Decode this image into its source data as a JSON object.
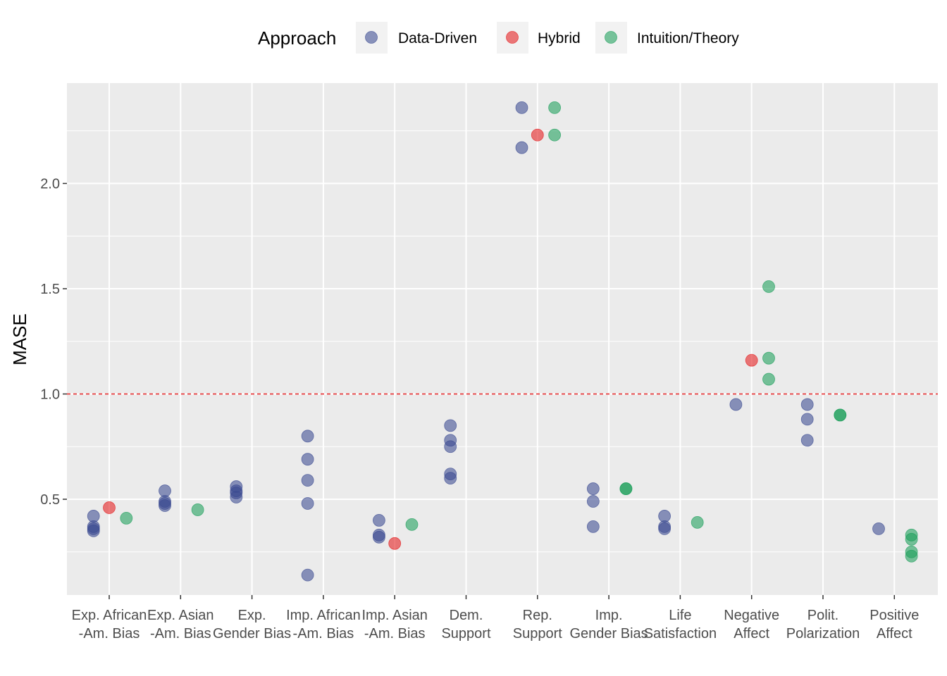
{
  "chart_data": {
    "type": "scatter",
    "ylabel": "MASE",
    "xlabel": "",
    "ylim": [
      0.0,
      2.43
    ],
    "yticks": [
      0.5,
      1.0,
      1.5,
      2.0
    ],
    "ytick_labels": [
      "0.5",
      "1.0",
      "1.5",
      "2.0"
    ],
    "reference_line": {
      "y": 1.0,
      "style": "dashed",
      "color": "#e41a1c"
    },
    "grid": true,
    "legend": {
      "title": "Approach",
      "position": "top"
    },
    "categories": [
      [
        "Exp. African",
        "-Am. Bias"
      ],
      [
        "Exp. Asian",
        "-Am. Bias"
      ],
      [
        "Exp.",
        "Gender Bias"
      ],
      [
        "Imp. African",
        "-Am. Bias"
      ],
      [
        "Imp. Asian",
        "-Am. Bias"
      ],
      [
        "Dem.",
        "Support"
      ],
      [
        "Rep.",
        "Support"
      ],
      [
        "Imp.",
        "Gender Bias"
      ],
      [
        "Life",
        "Satisfaction"
      ],
      [
        "Negative",
        "Affect"
      ],
      [
        "Polit.",
        "Polarization"
      ],
      [
        "Positive",
        "Affect"
      ]
    ],
    "series": [
      {
        "name": "Data-Driven",
        "color": "#3b4a91",
        "offset": -0.22,
        "points": [
          [
            0,
            0.42
          ],
          [
            0,
            0.37
          ],
          [
            0,
            0.36
          ],
          [
            0,
            0.35
          ],
          [
            1,
            0.54
          ],
          [
            1,
            0.49
          ],
          [
            1,
            0.48
          ],
          [
            1,
            0.47
          ],
          [
            2,
            0.56
          ],
          [
            2,
            0.54
          ],
          [
            2,
            0.53
          ],
          [
            2,
            0.51
          ],
          [
            3,
            0.8
          ],
          [
            3,
            0.69
          ],
          [
            3,
            0.59
          ],
          [
            3,
            0.48
          ],
          [
            3,
            0.14
          ],
          [
            4,
            0.4
          ],
          [
            4,
            0.33
          ],
          [
            4,
            0.32
          ],
          [
            5,
            0.85
          ],
          [
            5,
            0.78
          ],
          [
            5,
            0.75
          ],
          [
            5,
            0.62
          ],
          [
            5,
            0.6
          ],
          [
            6,
            2.36
          ],
          [
            6,
            2.17
          ],
          [
            7,
            0.55
          ],
          [
            7,
            0.49
          ],
          [
            7,
            0.37
          ],
          [
            8,
            0.42
          ],
          [
            8,
            0.37
          ],
          [
            8,
            0.36
          ],
          [
            9,
            0.95
          ],
          [
            10,
            0.95
          ],
          [
            10,
            0.88
          ],
          [
            10,
            0.78
          ],
          [
            11,
            0.36
          ]
        ]
      },
      {
        "name": "Hybrid",
        "color": "#e41a1c",
        "offset": 0.0,
        "points": [
          [
            0,
            0.46
          ],
          [
            4,
            0.29
          ],
          [
            6,
            2.23
          ],
          [
            9,
            1.16
          ]
        ]
      },
      {
        "name": "Intuition/Theory",
        "color": "#1b9e5a",
        "offset": 0.24,
        "points": [
          [
            0,
            0.41
          ],
          [
            1,
            0.45
          ],
          [
            4,
            0.38
          ],
          [
            6,
            2.36
          ],
          [
            6,
            2.23
          ],
          [
            7,
            0.55
          ],
          [
            7,
            0.55
          ],
          [
            8,
            0.39
          ],
          [
            9,
            1.51
          ],
          [
            9,
            1.17
          ],
          [
            9,
            1.07
          ],
          [
            10,
            0.9
          ],
          [
            10,
            0.9
          ],
          [
            11,
            0.33
          ],
          [
            11,
            0.31
          ],
          [
            11,
            0.25
          ],
          [
            11,
            0.23
          ]
        ]
      }
    ]
  }
}
